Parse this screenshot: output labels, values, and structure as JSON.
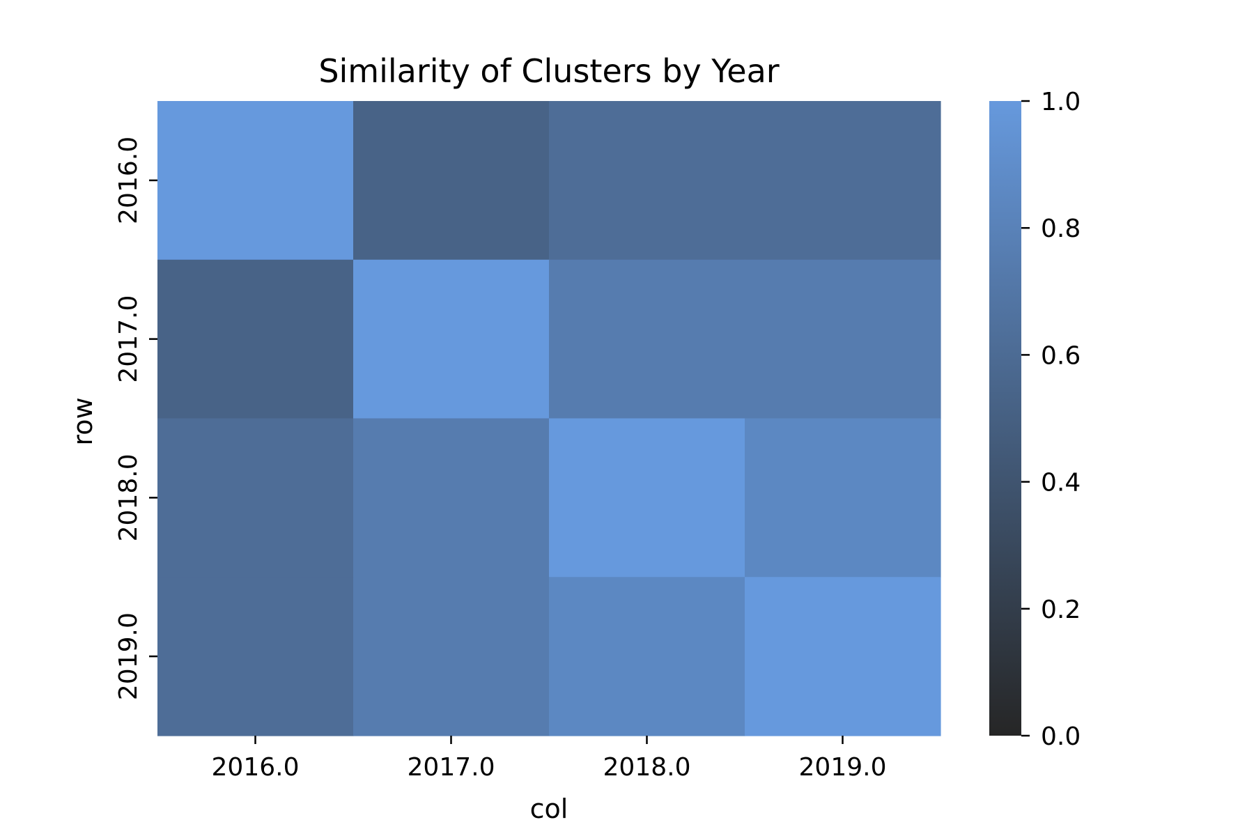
{
  "chart_data": {
    "type": "heatmap",
    "title": "Similarity of Clusters by Year",
    "xlabel": "col",
    "ylabel": "row",
    "x_categories": [
      "2016.0",
      "2017.0",
      "2018.0",
      "2019.0"
    ],
    "y_categories": [
      "2016.0",
      "2017.0",
      "2018.0",
      "2019.0"
    ],
    "values": [
      [
        1.0,
        0.53,
        0.62,
        0.62
      ],
      [
        0.53,
        1.0,
        0.75,
        0.75
      ],
      [
        0.62,
        0.75,
        1.0,
        0.85
      ],
      [
        0.62,
        0.75,
        0.85,
        1.0
      ]
    ],
    "colorbar": {
      "min": 0.0,
      "max": 1.0,
      "ticks": [
        0.0,
        0.2,
        0.4,
        0.6,
        0.8,
        1.0
      ],
      "tick_labels": [
        "0.0",
        "0.2",
        "0.4",
        "0.6",
        "0.8",
        "1.0"
      ],
      "color_low": "#262626",
      "color_high": "#6699dd"
    },
    "grid": false,
    "legend": "colorbar-right"
  }
}
